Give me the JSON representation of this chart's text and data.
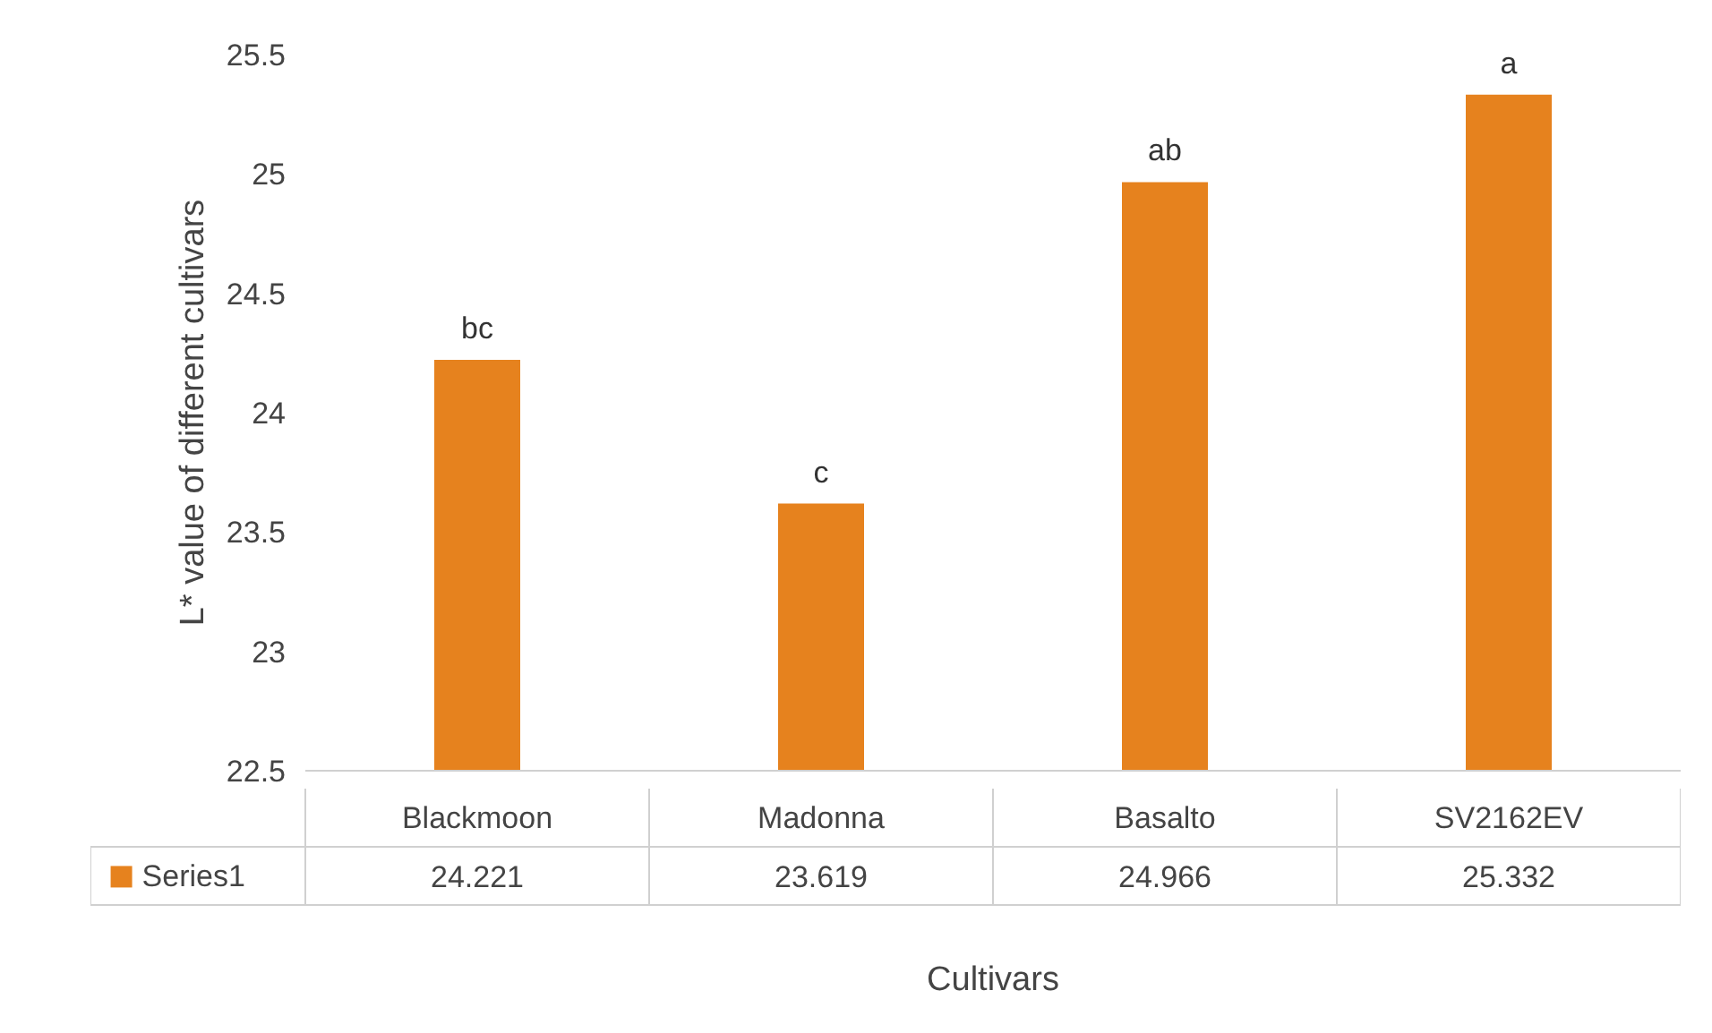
{
  "chart_data": {
    "type": "bar",
    "xlabel": "Cultivars",
    "ylabel": "L* value of different cultivars",
    "categories": [
      "Blackmoon",
      "Madonna",
      "Basalto",
      "SV2162EV"
    ],
    "series": [
      {
        "name": "Series1",
        "color": "#e6821e",
        "values": [
          24.221,
          23.619,
          24.966,
          25.332
        ]
      }
    ],
    "ylim": [
      22.5,
      25.5
    ],
    "yticks": [
      22.5,
      23,
      23.5,
      24,
      24.5,
      25,
      25.5
    ],
    "data_labels": true,
    "legend": "bottom",
    "annotations": [
      {
        "text": "bc",
        "x": "Blackmoon",
        "y": 24.221
      },
      {
        "text": "c",
        "x": "Madonna",
        "y": 23.619
      },
      {
        "text": "ab",
        "x": "Basalto",
        "y": 24.966
      },
      {
        "text": "a",
        "x": "SV2162EV",
        "y": 25.332
      }
    ]
  }
}
